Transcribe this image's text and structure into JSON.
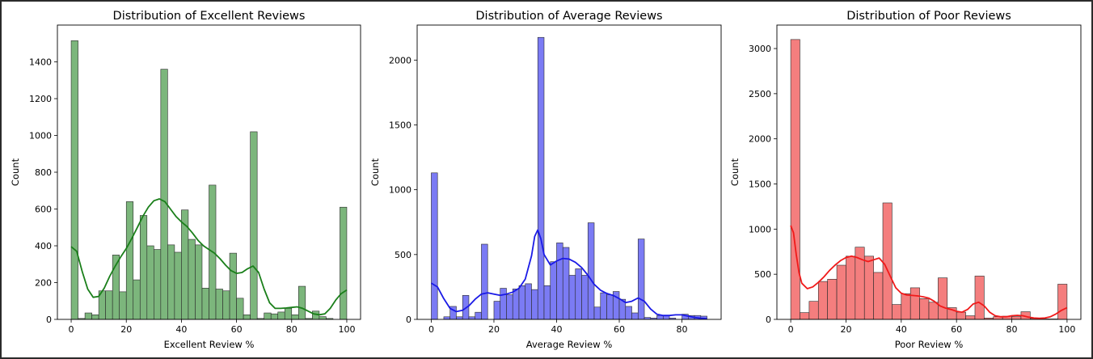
{
  "chart_data": [
    {
      "type": "histogram",
      "title": "Distribution of Excellent Reviews",
      "xlabel": "Excellent Review %",
      "ylabel": "Count",
      "xlim": [
        -5,
        105
      ],
      "ylim": [
        0,
        1600
      ],
      "xticks": [
        0,
        20,
        40,
        60,
        80,
        100
      ],
      "yticks": [
        0,
        200,
        400,
        600,
        800,
        1000,
        1200,
        1400
      ],
      "bar_color": "#7cb67c",
      "kde_color": "#1a7f1a",
      "bin_width": 2.5,
      "bins": [
        {
          "x": 0,
          "count": 1515
        },
        {
          "x": 2.5,
          "count": 5
        },
        {
          "x": 5,
          "count": 35
        },
        {
          "x": 7.5,
          "count": 25
        },
        {
          "x": 10,
          "count": 155
        },
        {
          "x": 12.5,
          "count": 155
        },
        {
          "x": 15,
          "count": 350
        },
        {
          "x": 17.5,
          "count": 150
        },
        {
          "x": 20,
          "count": 640
        },
        {
          "x": 22.5,
          "count": 215
        },
        {
          "x": 25,
          "count": 565
        },
        {
          "x": 27.5,
          "count": 400
        },
        {
          "x": 30,
          "count": 380
        },
        {
          "x": 32.5,
          "count": 1360
        },
        {
          "x": 35,
          "count": 405
        },
        {
          "x": 37.5,
          "count": 365
        },
        {
          "x": 40,
          "count": 595
        },
        {
          "x": 42.5,
          "count": 435
        },
        {
          "x": 45,
          "count": 405
        },
        {
          "x": 47.5,
          "count": 170
        },
        {
          "x": 50,
          "count": 730
        },
        {
          "x": 52.5,
          "count": 165
        },
        {
          "x": 55,
          "count": 155
        },
        {
          "x": 57.5,
          "count": 360
        },
        {
          "x": 60,
          "count": 115
        },
        {
          "x": 62.5,
          "count": 25
        },
        {
          "x": 65,
          "count": 1020
        },
        {
          "x": 67.5,
          "count": 5
        },
        {
          "x": 70,
          "count": 35
        },
        {
          "x": 72.5,
          "count": 30
        },
        {
          "x": 75,
          "count": 40
        },
        {
          "x": 77.5,
          "count": 60
        },
        {
          "x": 80,
          "count": 25
        },
        {
          "x": 82.5,
          "count": 180
        },
        {
          "x": 85,
          "count": 5
        },
        {
          "x": 87.5,
          "count": 45
        },
        {
          "x": 90,
          "count": 15
        },
        {
          "x": 92.5,
          "count": 5
        },
        {
          "x": 97.5,
          "count": 610
        }
      ],
      "kde": [
        [
          0,
          395
        ],
        [
          2,
          370
        ],
        [
          4,
          260
        ],
        [
          6,
          165
        ],
        [
          8,
          120
        ],
        [
          10,
          125
        ],
        [
          12,
          170
        ],
        [
          14,
          235
        ],
        [
          16,
          290
        ],
        [
          18,
          340
        ],
        [
          20,
          385
        ],
        [
          22,
          440
        ],
        [
          24,
          500
        ],
        [
          26,
          560
        ],
        [
          28,
          610
        ],
        [
          30,
          645
        ],
        [
          32,
          655
        ],
        [
          34,
          640
        ],
        [
          36,
          600
        ],
        [
          38,
          560
        ],
        [
          40,
          530
        ],
        [
          42,
          505
        ],
        [
          44,
          470
        ],
        [
          46,
          430
        ],
        [
          48,
          400
        ],
        [
          50,
          380
        ],
        [
          52,
          360
        ],
        [
          54,
          330
        ],
        [
          56,
          295
        ],
        [
          58,
          265
        ],
        [
          60,
          250
        ],
        [
          62,
          255
        ],
        [
          64,
          275
        ],
        [
          66,
          290
        ],
        [
          68,
          255
        ],
        [
          70,
          165
        ],
        [
          72,
          90
        ],
        [
          74,
          60
        ],
        [
          76,
          60
        ],
        [
          78,
          62
        ],
        [
          80,
          65
        ],
        [
          82,
          68
        ],
        [
          84,
          60
        ],
        [
          86,
          45
        ],
        [
          88,
          30
        ],
        [
          90,
          25
        ],
        [
          92,
          30
        ],
        [
          94,
          60
        ],
        [
          96,
          105
        ],
        [
          98,
          140
        ],
        [
          100,
          160
        ]
      ]
    },
    {
      "type": "histogram",
      "title": "Distribution of Average Reviews",
      "xlabel": "Average Review %",
      "ylabel": "Count",
      "xlim": [
        -4.5,
        92.5
      ],
      "ylim": [
        0,
        2270
      ],
      "xticks": [
        0,
        20,
        40,
        60,
        80
      ],
      "yticks": [
        0,
        500,
        1000,
        1500,
        2000
      ],
      "bar_color": "#7b7bf4",
      "kde_color": "#1a1ae6",
      "bin_width": 2,
      "bins": [
        {
          "x": 0,
          "count": 1130
        },
        {
          "x": 2,
          "count": 0
        },
        {
          "x": 4,
          "count": 20
        },
        {
          "x": 6,
          "count": 100
        },
        {
          "x": 8,
          "count": 20
        },
        {
          "x": 10,
          "count": 185
        },
        {
          "x": 12,
          "count": 20
        },
        {
          "x": 14,
          "count": 55
        },
        {
          "x": 16,
          "count": 580
        },
        {
          "x": 18,
          "count": 0
        },
        {
          "x": 20,
          "count": 140
        },
        {
          "x": 22,
          "count": 240
        },
        {
          "x": 24,
          "count": 190
        },
        {
          "x": 26,
          "count": 235
        },
        {
          "x": 28,
          "count": 260
        },
        {
          "x": 30,
          "count": 275
        },
        {
          "x": 32,
          "count": 230
        },
        {
          "x": 34,
          "count": 2175
        },
        {
          "x": 36,
          "count": 260
        },
        {
          "x": 38,
          "count": 445
        },
        {
          "x": 40,
          "count": 590
        },
        {
          "x": 42,
          "count": 555
        },
        {
          "x": 44,
          "count": 340
        },
        {
          "x": 46,
          "count": 390
        },
        {
          "x": 48,
          "count": 340
        },
        {
          "x": 50,
          "count": 745
        },
        {
          "x": 52,
          "count": 95
        },
        {
          "x": 54,
          "count": 205
        },
        {
          "x": 56,
          "count": 190
        },
        {
          "x": 58,
          "count": 215
        },
        {
          "x": 60,
          "count": 155
        },
        {
          "x": 62,
          "count": 100
        },
        {
          "x": 64,
          "count": 50
        },
        {
          "x": 66,
          "count": 620
        },
        {
          "x": 68,
          "count": 15
        },
        {
          "x": 70,
          "count": 10
        },
        {
          "x": 72,
          "count": 30
        },
        {
          "x": 74,
          "count": 30
        },
        {
          "x": 76,
          "count": 10
        },
        {
          "x": 78,
          "count": 0
        },
        {
          "x": 80,
          "count": 40
        },
        {
          "x": 82,
          "count": 30
        },
        {
          "x": 84,
          "count": 30
        },
        {
          "x": 86,
          "count": 25
        }
      ],
      "kde": [
        [
          0,
          280
        ],
        [
          2,
          250
        ],
        [
          4,
          160
        ],
        [
          6,
          85
        ],
        [
          8,
          60
        ],
        [
          10,
          70
        ],
        [
          12,
          105
        ],
        [
          14,
          155
        ],
        [
          16,
          195
        ],
        [
          18,
          205
        ],
        [
          20,
          195
        ],
        [
          22,
          185
        ],
        [
          24,
          195
        ],
        [
          26,
          210
        ],
        [
          28,
          240
        ],
        [
          30,
          310
        ],
        [
          32,
          490
        ],
        [
          33,
          640
        ],
        [
          34,
          690
        ],
        [
          35,
          620
        ],
        [
          36,
          500
        ],
        [
          38,
          420
        ],
        [
          40,
          450
        ],
        [
          42,
          470
        ],
        [
          44,
          465
        ],
        [
          46,
          440
        ],
        [
          48,
          400
        ],
        [
          50,
          340
        ],
        [
          52,
          270
        ],
        [
          54,
          225
        ],
        [
          56,
          200
        ],
        [
          58,
          185
        ],
        [
          60,
          160
        ],
        [
          62,
          130
        ],
        [
          64,
          140
        ],
        [
          66,
          165
        ],
        [
          68,
          140
        ],
        [
          70,
          80
        ],
        [
          72,
          40
        ],
        [
          74,
          30
        ],
        [
          76,
          30
        ],
        [
          78,
          35
        ],
        [
          80,
          35
        ],
        [
          82,
          25
        ],
        [
          84,
          15
        ],
        [
          86,
          8
        ],
        [
          88,
          5
        ]
      ]
    },
    {
      "type": "histogram",
      "title": "Distribution of Poor Reviews",
      "xlabel": "Poor Review %",
      "ylabel": "Count",
      "xlim": [
        -5,
        105
      ],
      "ylim": [
        0,
        3260
      ],
      "xticks": [
        0,
        20,
        40,
        60,
        80,
        100
      ],
      "yticks": [
        0,
        500,
        1000,
        1500,
        2000,
        2500,
        3000
      ],
      "bar_color": "#f47e7e",
      "kde_color": "#f01a1a",
      "bin_width": 3.33,
      "bins": [
        {
          "x": 0,
          "count": 3100
        },
        {
          "x": 3.33,
          "count": 75
        },
        {
          "x": 6.67,
          "count": 200
        },
        {
          "x": 10,
          "count": 420
        },
        {
          "x": 13.33,
          "count": 445
        },
        {
          "x": 16.67,
          "count": 600
        },
        {
          "x": 20,
          "count": 700
        },
        {
          "x": 23.33,
          "count": 800
        },
        {
          "x": 26.67,
          "count": 700
        },
        {
          "x": 30,
          "count": 520
        },
        {
          "x": 33.33,
          "count": 1290
        },
        {
          "x": 36.67,
          "count": 165
        },
        {
          "x": 40,
          "count": 285
        },
        {
          "x": 43.33,
          "count": 350
        },
        {
          "x": 46.67,
          "count": 230
        },
        {
          "x": 50,
          "count": 190
        },
        {
          "x": 53.33,
          "count": 460
        },
        {
          "x": 56.67,
          "count": 130
        },
        {
          "x": 60,
          "count": 80
        },
        {
          "x": 63.33,
          "count": 40
        },
        {
          "x": 66.67,
          "count": 480
        },
        {
          "x": 70,
          "count": 15
        },
        {
          "x": 73.33,
          "count": 30
        },
        {
          "x": 76.67,
          "count": 35
        },
        {
          "x": 80,
          "count": 30
        },
        {
          "x": 83.33,
          "count": 85
        },
        {
          "x": 86.67,
          "count": 10
        },
        {
          "x": 90,
          "count": 5
        },
        {
          "x": 93.33,
          "count": 5
        },
        {
          "x": 96.67,
          "count": 390
        }
      ],
      "kde": [
        [
          0,
          1040
        ],
        [
          1,
          960
        ],
        [
          2,
          720
        ],
        [
          3,
          520
        ],
        [
          4,
          400
        ],
        [
          6,
          340
        ],
        [
          8,
          360
        ],
        [
          10,
          410
        ],
        [
          12,
          470
        ],
        [
          14,
          540
        ],
        [
          16,
          600
        ],
        [
          18,
          650
        ],
        [
          20,
          685
        ],
        [
          22,
          700
        ],
        [
          24,
          685
        ],
        [
          26,
          660
        ],
        [
          28,
          640
        ],
        [
          30,
          660
        ],
        [
          32,
          680
        ],
        [
          34,
          610
        ],
        [
          36,
          480
        ],
        [
          38,
          350
        ],
        [
          40,
          290
        ],
        [
          42,
          270
        ],
        [
          44,
          265
        ],
        [
          46,
          260
        ],
        [
          48,
          250
        ],
        [
          50,
          235
        ],
        [
          52,
          200
        ],
        [
          54,
          150
        ],
        [
          56,
          125
        ],
        [
          58,
          110
        ],
        [
          60,
          90
        ],
        [
          62,
          80
        ],
        [
          64,
          110
        ],
        [
          66,
          170
        ],
        [
          68,
          190
        ],
        [
          70,
          150
        ],
        [
          72,
          80
        ],
        [
          74,
          40
        ],
        [
          76,
          30
        ],
        [
          78,
          30
        ],
        [
          80,
          40
        ],
        [
          82,
          45
        ],
        [
          84,
          40
        ],
        [
          86,
          25
        ],
        [
          88,
          15
        ],
        [
          90,
          12
        ],
        [
          92,
          15
        ],
        [
          94,
          30
        ],
        [
          96,
          60
        ],
        [
          98,
          100
        ],
        [
          100,
          130
        ]
      ]
    }
  ]
}
